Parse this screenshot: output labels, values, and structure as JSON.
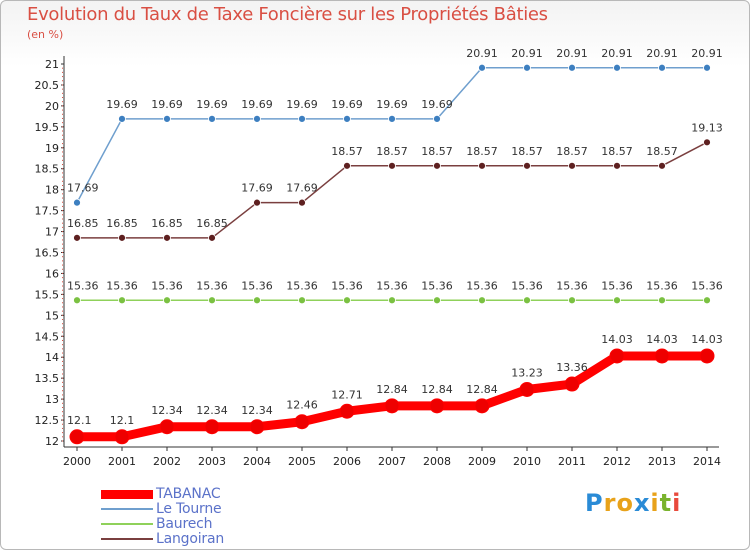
{
  "title": "Evolution du Taux de Taxe Foncière sur les Propriétés Bâties",
  "unit_label": "(en %)",
  "brand": {
    "letters": [
      "P",
      "r",
      "o",
      "x",
      "i",
      "t",
      "i"
    ],
    "colors": [
      "#2a8bd6",
      "#e8a21a",
      "#e8a21a",
      "#2a8bd6",
      "#e8a21a",
      "#7ab32e",
      "#e84a3c"
    ]
  },
  "chart_data": {
    "type": "line",
    "title": "Evolution du Taux de Taxe Foncière sur les Propriétés Bâties",
    "ylabel": "(en %)",
    "xlabel": "",
    "x": [
      "2000",
      "2001",
      "2002",
      "2003",
      "2004",
      "2005",
      "2006",
      "2007",
      "2008",
      "2009",
      "2010",
      "2011",
      "2012",
      "2013",
      "2014"
    ],
    "ylim": [
      12,
      21
    ],
    "yticks": [
      12,
      12.5,
      13,
      13.5,
      14,
      14.5,
      15,
      15.5,
      16,
      16.5,
      17,
      17.5,
      18,
      18.5,
      19,
      19.5,
      20,
      20.5,
      21
    ],
    "grid": false,
    "series": [
      {
        "name": "TABANAC",
        "color": "#ff0000",
        "markerColor": "#ee0000",
        "values": [
          12.1,
          12.1,
          12.34,
          12.34,
          12.34,
          12.46,
          12.71,
          12.84,
          12.84,
          12.84,
          13.23,
          13.36,
          14.03,
          14.03,
          14.03
        ],
        "labels": [
          "12.1",
          "12.1",
          "12.34",
          "12.34",
          "12.34",
          "12.46",
          "12.71",
          "12.84",
          "12.84",
          "12.84",
          "13.23",
          "13.36",
          "14.03",
          "14.03",
          "14.03"
        ]
      },
      {
        "name": "Le Tourne",
        "color": "#6f9fce",
        "markerColor": "#3d7fc0",
        "values": [
          17.69,
          19.69,
          19.69,
          19.69,
          19.69,
          19.69,
          19.69,
          19.69,
          19.69,
          20.91,
          20.91,
          20.91,
          20.91,
          20.91,
          20.91
        ],
        "labels": [
          "17.69",
          "19.69",
          "19.69",
          "19.69",
          "19.69",
          "19.69",
          "19.69",
          "19.69",
          "19.69",
          "20.91",
          "20.91",
          "20.91",
          "20.91",
          "20.91",
          "20.91"
        ]
      },
      {
        "name": "Baurech",
        "color": "#8fd15a",
        "markerColor": "#7bc142",
        "values": [
          15.36,
          15.36,
          15.36,
          15.36,
          15.36,
          15.36,
          15.36,
          15.36,
          15.36,
          15.36,
          15.36,
          15.36,
          15.36,
          15.36,
          15.36
        ],
        "labels": [
          "15.36",
          "15.36",
          "15.36",
          "15.36",
          "15.36",
          "15.36",
          "15.36",
          "15.36",
          "15.36",
          "15.36",
          "15.36",
          "15.36",
          "15.36",
          "15.36",
          "15.36"
        ]
      },
      {
        "name": "Langoiran",
        "color": "#7a3f3f",
        "markerColor": "#5e2020",
        "values": [
          16.85,
          16.85,
          16.85,
          16.85,
          17.69,
          17.69,
          18.57,
          18.57,
          18.57,
          18.57,
          18.57,
          18.57,
          18.57,
          18.57,
          19.13
        ],
        "labels": [
          "16.85",
          "16.85",
          "16.85",
          "16.85",
          "17.69",
          "17.69",
          "18.57",
          "18.57",
          "18.57",
          "18.57",
          "18.57",
          "18.57",
          "18.57",
          "18.57",
          "19.13"
        ]
      }
    ],
    "legend": {
      "position": "bottom-left",
      "items": [
        "TABANAC",
        "Le Tourne",
        "Baurech",
        "Langoiran"
      ]
    }
  }
}
